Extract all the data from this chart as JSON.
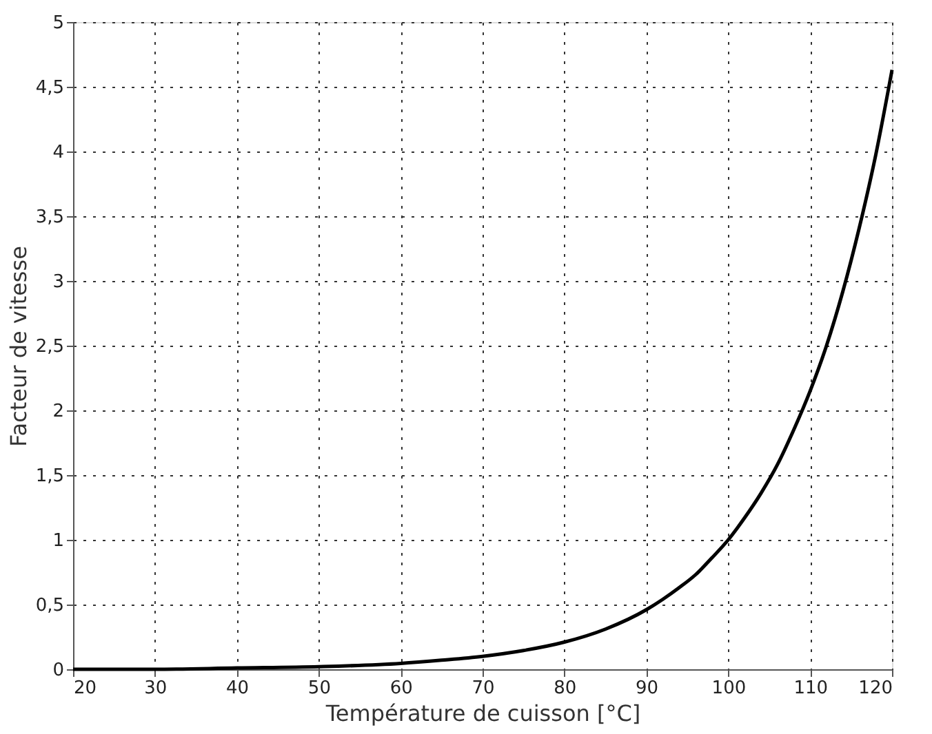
{
  "chart_data": {
    "type": "line",
    "xlabel": "Température de cuisson [°C]",
    "ylabel": "Facteur de vitesse",
    "x": [
      20,
      30,
      40,
      50,
      60,
      65,
      70,
      75,
      80,
      85,
      90,
      92,
      94,
      96,
      98,
      100,
      102,
      104,
      106,
      108,
      110,
      112,
      114,
      116,
      118,
      120
    ],
    "series": [
      {
        "color": "#000000",
        "values": [
          0,
          0,
          0.01,
          0.02,
          0.045,
          0.07,
          0.1,
          0.145,
          0.21,
          0.31,
          0.46,
          0.54,
          0.63,
          0.73,
          0.86,
          1.0,
          1.17,
          1.36,
          1.58,
          1.85,
          2.15,
          2.5,
          2.92,
          3.41,
          3.97,
          4.63
        ]
      }
    ],
    "xlim": [
      20,
      120
    ],
    "xticks": [
      20,
      30,
      40,
      50,
      60,
      70,
      80,
      90,
      100,
      110,
      120
    ],
    "ylim": [
      0,
      5
    ],
    "yticks": [
      0,
      {
        "value": 0.5,
        "label": "0,5"
      },
      1,
      {
        "value": 1.5,
        "label": "1,5"
      },
      2,
      {
        "value": 2.5,
        "label": "2,5"
      },
      3,
      {
        "value": 3.5,
        "label": "3,5"
      },
      4,
      {
        "value": 4.5,
        "label": "4,5"
      },
      5
    ],
    "grid": true,
    "marker": "none",
    "line_style": "solid"
  }
}
